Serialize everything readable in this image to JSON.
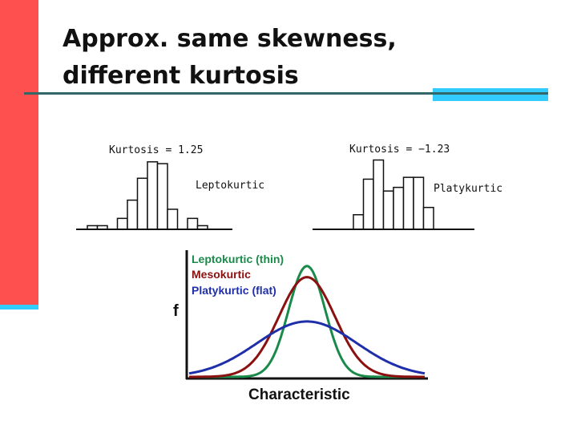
{
  "slide": {
    "title_line1": "Approx. same skewness,",
    "title_line2": "different kurtosis"
  },
  "chart_data": [
    {
      "type": "bar",
      "annotation": "Kurtosis = 1.25",
      "label": "Leptokurtic",
      "values": [
        0.4,
        0.4,
        0,
        1.2,
        3.2,
        5.6,
        7.4,
        7.2,
        2.2,
        0,
        1.2,
        0.4
      ],
      "ylim": [
        0,
        8
      ]
    },
    {
      "type": "bar",
      "annotation": "Kurtosis = −1.23",
      "label": "Platykurtic",
      "values": [
        1.6,
        5.5,
        7.6,
        4.2,
        4.6,
        5.7,
        5.7,
        2.4
      ],
      "ylim": [
        0,
        8
      ]
    },
    {
      "type": "line",
      "xlabel": "Characteristic",
      "ylabel": "f",
      "series": [
        {
          "name": "Leptokurtic (thin)",
          "color": "#1a8a4a",
          "peak": 1.0,
          "sigma": 0.62
        },
        {
          "name": "Mesokurtic",
          "color": "#8b1010",
          "peak": 0.9,
          "sigma": 0.95
        },
        {
          "name": "Platykurtic (flat)",
          "color": "#1f2faa",
          "peak": 0.5,
          "sigma": 1.7
        }
      ],
      "xlim": [
        -4,
        4
      ],
      "ylim": [
        0,
        1.1
      ]
    }
  ]
}
